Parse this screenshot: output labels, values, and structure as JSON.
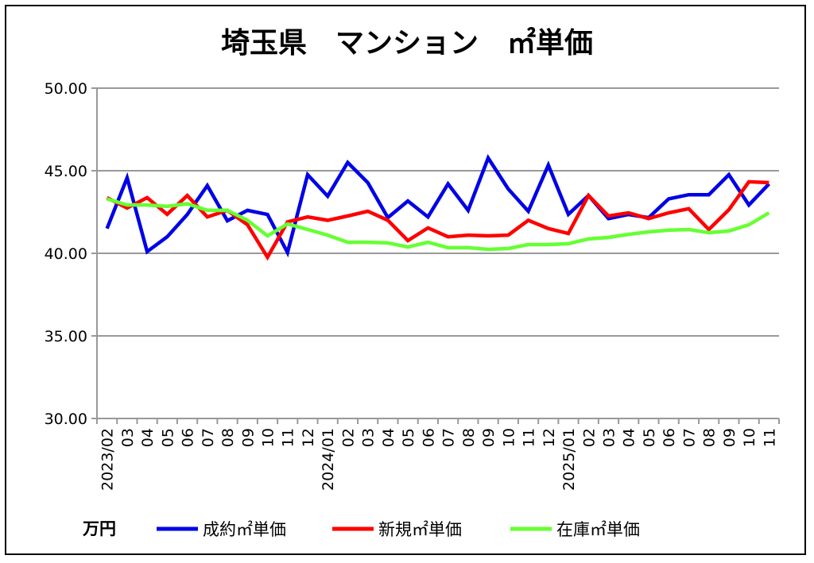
{
  "chart_data": {
    "type": "line",
    "title": "埼玉県　マンション　㎡単価",
    "ylabel": "万円",
    "xlabel": "",
    "ylim": [
      30,
      50
    ],
    "yticks": [
      "30.00",
      "35.00",
      "40.00",
      "45.00",
      "50.00"
    ],
    "grid": true,
    "legend_position": "bottom",
    "categories": [
      "2023/02",
      "03",
      "04",
      "05",
      "06",
      "07",
      "08",
      "09",
      "10",
      "11",
      "12",
      "2024/01",
      "02",
      "03",
      "04",
      "05",
      "06",
      "07",
      "08",
      "09",
      "10",
      "11",
      "12",
      "2025/01",
      "02",
      "03",
      "04",
      "05",
      "06",
      "07",
      "08",
      "09",
      "10",
      "11"
    ],
    "series": [
      {
        "name": "成約㎡単価",
        "color": "#0000e6",
        "values": [
          41.5,
          44.57,
          40.1,
          41.0,
          42.35,
          44.1,
          41.97,
          42.6,
          42.35,
          40.05,
          44.76,
          43.46,
          45.5,
          44.28,
          42.16,
          43.17,
          42.2,
          44.2,
          42.6,
          45.77,
          43.9,
          42.55,
          45.34,
          42.36,
          43.5,
          42.1,
          42.35,
          42.16,
          43.3,
          43.55,
          43.55,
          44.76,
          42.93,
          44.2
        ]
      },
      {
        "name": "新規㎡単価",
        "color": "#ff0000",
        "values": [
          43.37,
          42.74,
          43.37,
          42.36,
          43.5,
          42.2,
          42.6,
          41.73,
          39.76,
          41.9,
          42.2,
          42.0,
          42.26,
          42.55,
          42.0,
          40.77,
          41.54,
          41.0,
          41.1,
          41.06,
          41.1,
          42.0,
          41.5,
          41.2,
          43.5,
          42.26,
          42.45,
          42.1,
          42.45,
          42.7,
          41.44,
          42.64,
          44.33,
          44.28
        ]
      },
      {
        "name": "在庫㎡単価",
        "color": "#66ff33",
        "values": [
          43.3,
          42.93,
          42.93,
          42.84,
          43.0,
          42.6,
          42.6,
          42.0,
          41.06,
          41.78,
          41.44,
          41.1,
          40.67,
          40.67,
          40.63,
          40.38,
          40.67,
          40.34,
          40.34,
          40.24,
          40.29,
          40.53,
          40.53,
          40.58,
          40.87,
          40.96,
          41.15,
          41.3,
          41.4,
          41.44,
          41.25,
          41.35,
          41.73,
          42.45
        ]
      }
    ]
  }
}
